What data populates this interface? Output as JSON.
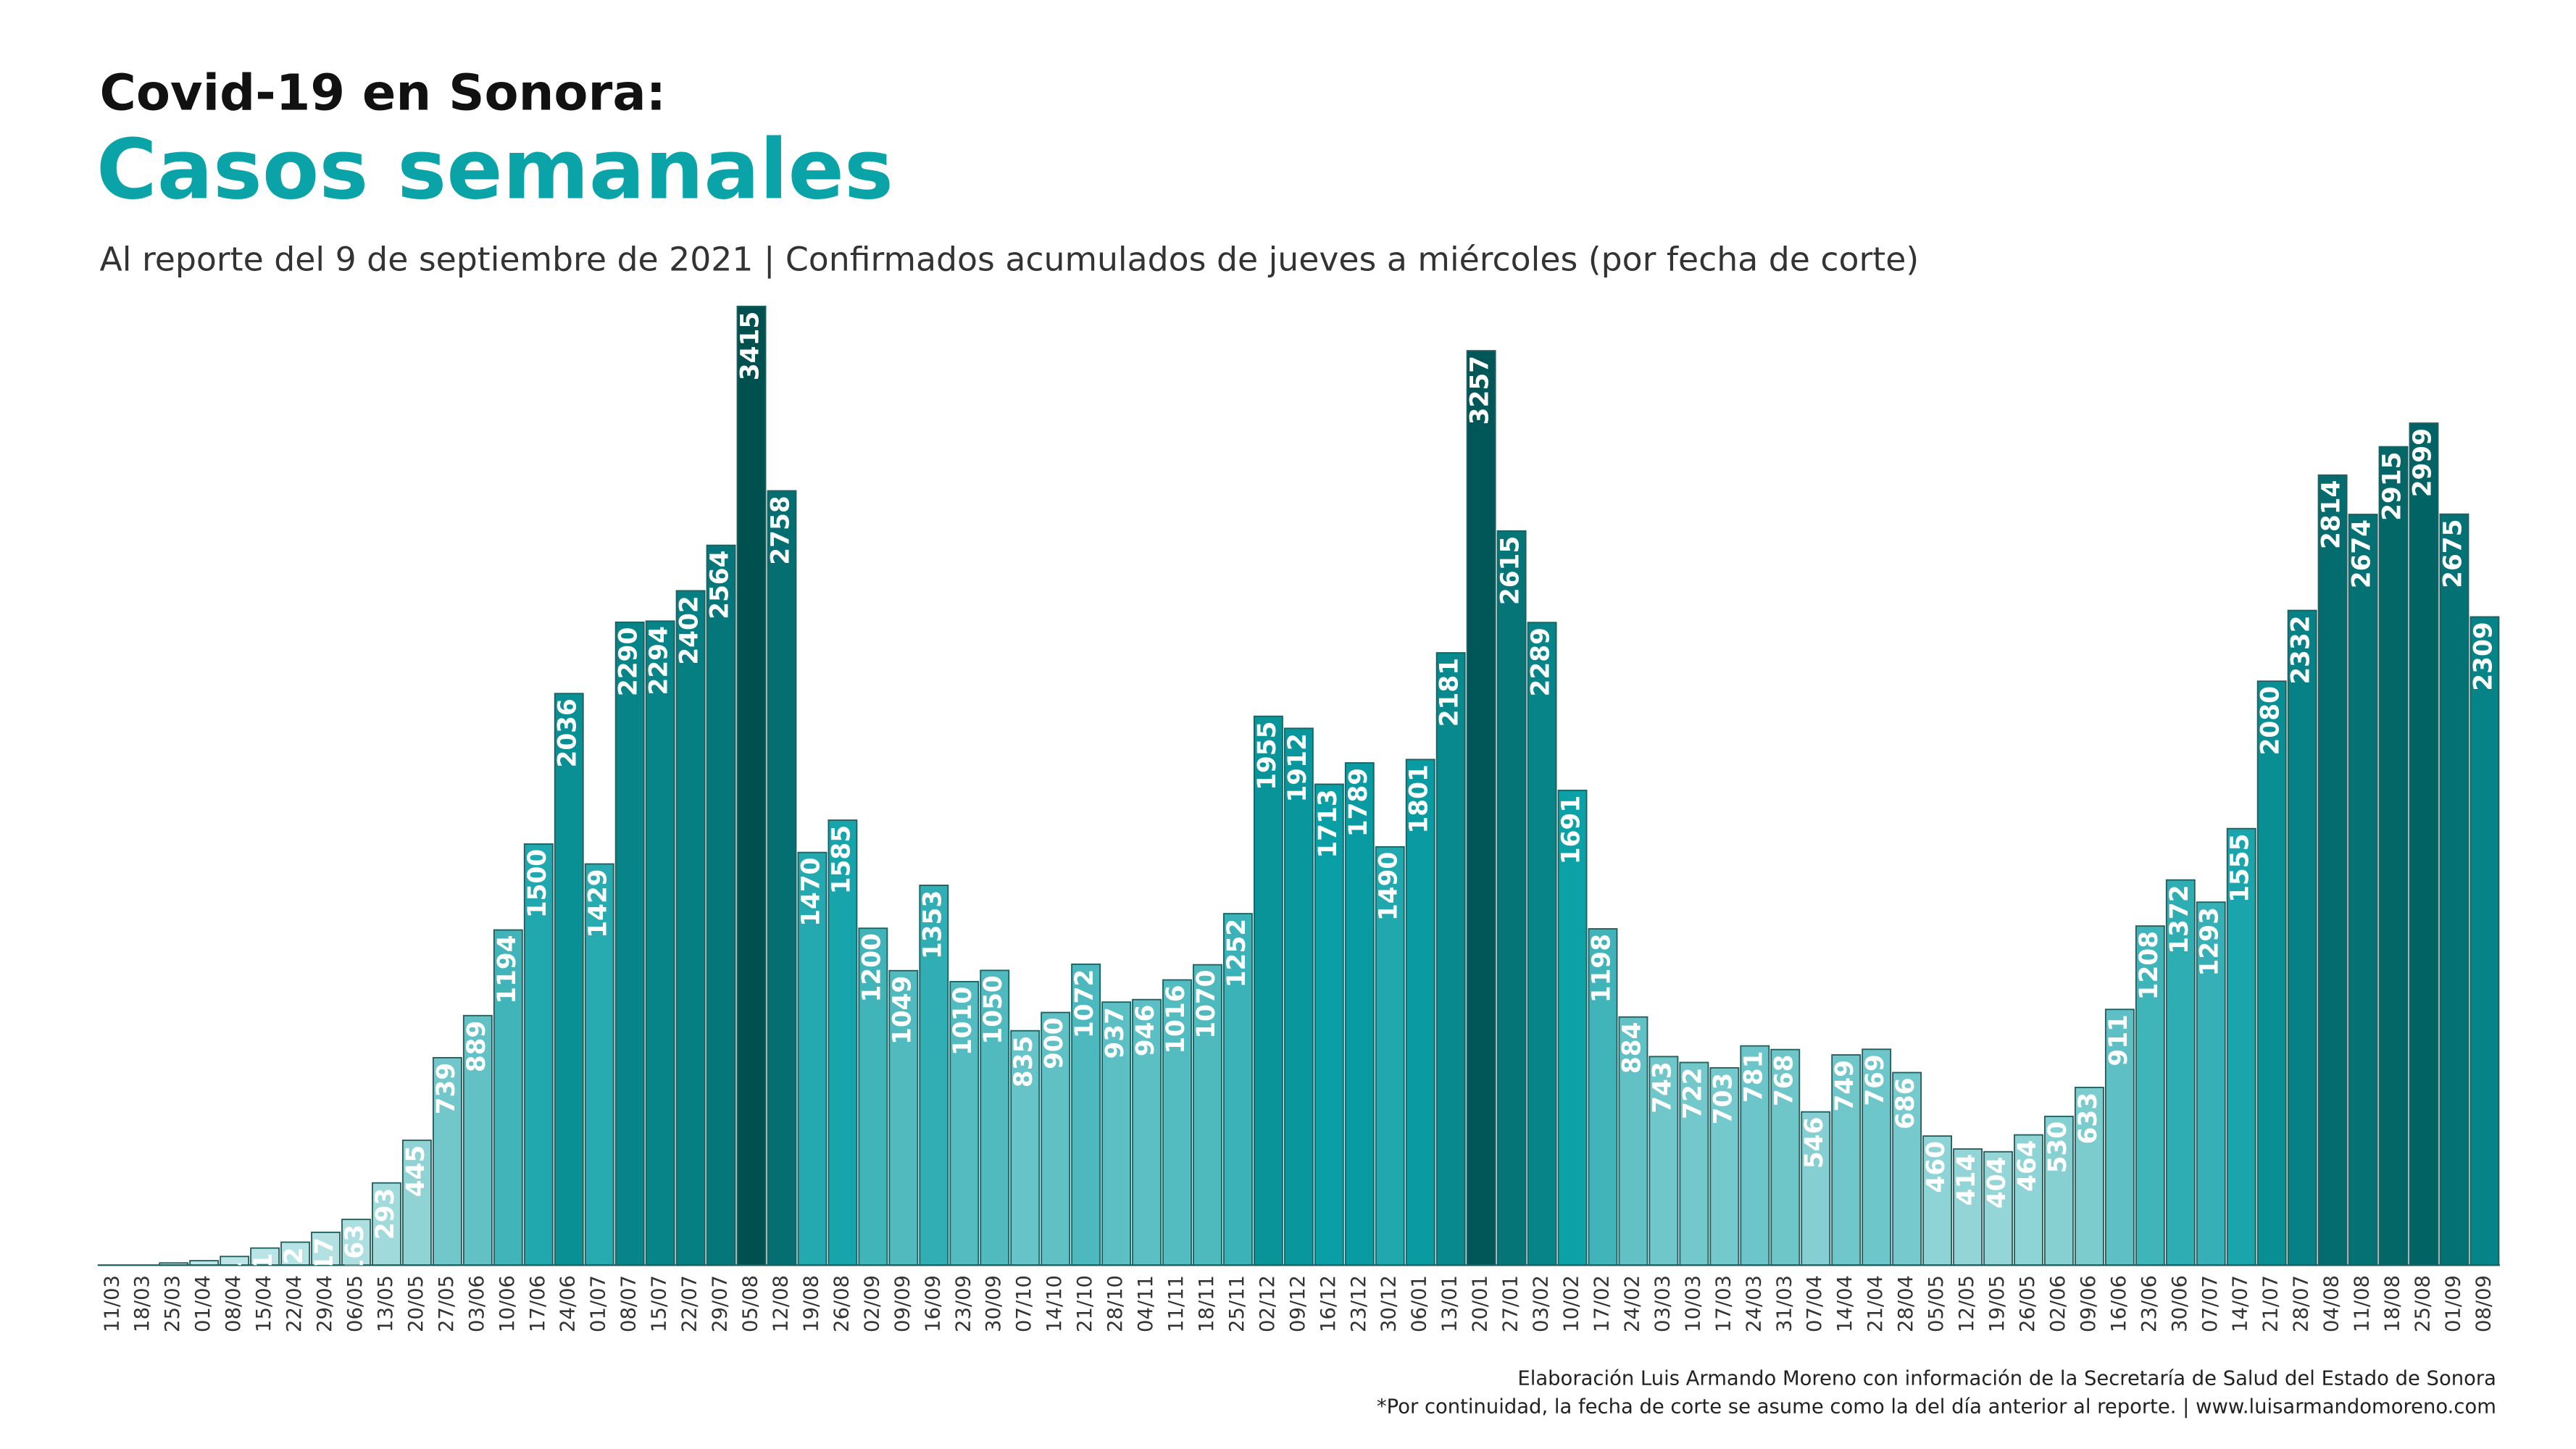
{
  "chart_data": {
    "type": "bar",
    "title": "Covid-19 en Sonora:",
    "subtitle": "Casos semanales",
    "description": "Al reporte del 9 de septiembre de 2021 | Confirmados acumulados de jueves a miércoles (por fecha de corte)",
    "source": "Elaboración Luis Armando Moreno con información de la Secretaría de Salud del Estado de Sonora",
    "note": "*Por continuidad, la fecha de corte se asume como la del día anterior al reporte. | www.luisarmandomoreno.com",
    "categories": [
      "11/03",
      "18/03",
      "25/03",
      "01/04",
      "08/04",
      "15/04",
      "22/04",
      "29/04",
      "06/05",
      "13/05",
      "20/05",
      "27/05",
      "03/06",
      "10/06",
      "17/06",
      "24/06",
      "01/07",
      "08/07",
      "15/07",
      "22/07",
      "29/07",
      "05/08",
      "12/08",
      "19/08",
      "26/08",
      "02/09",
      "09/09",
      "16/09",
      "23/09",
      "30/09",
      "07/10",
      "14/10",
      "21/10",
      "28/10",
      "04/11",
      "11/11",
      "18/11",
      "25/11",
      "02/12",
      "09/12",
      "16/12",
      "23/12",
      "30/12",
      "06/01",
      "13/01",
      "20/01",
      "27/01",
      "03/02",
      "10/02",
      "17/02",
      "24/02",
      "03/03",
      "10/03",
      "17/03",
      "24/03",
      "31/03",
      "07/04",
      "14/04",
      "21/04",
      "28/04",
      "05/05",
      "12/05",
      "19/05",
      "26/05",
      "02/06",
      "09/06",
      "16/06",
      "23/06",
      "30/06",
      "07/07",
      "14/07",
      "21/07",
      "28/07",
      "04/08",
      "11/08",
      "18/08",
      "25/08",
      "01/09",
      "08/09"
    ],
    "values": [
      0,
      0,
      8,
      16,
      31,
      61,
      82,
      117,
      163,
      293,
      445,
      739,
      889,
      1194,
      1500,
      2036,
      1429,
      2290,
      2294,
      2402,
      2564,
      3415,
      2758,
      1470,
      1585,
      1200,
      1049,
      1353,
      1010,
      1050,
      835,
      900,
      1072,
      937,
      946,
      1016,
      1070,
      1252,
      1955,
      1912,
      1713,
      1789,
      1490,
      1801,
      2181,
      3257,
      2615,
      2289,
      1691,
      1198,
      884,
      743,
      722,
      703,
      781,
      768,
      546,
      749,
      769,
      686,
      460,
      414,
      404,
      464,
      530,
      633,
      911,
      1208,
      1372,
      1293,
      1555,
      2080,
      2332,
      2814,
      2674,
      2915,
      2999,
      2675,
      2309
    ],
    "colors": [
      "#bfe6e6",
      "#0a9fa6",
      "#00504f"
    ]
  }
}
